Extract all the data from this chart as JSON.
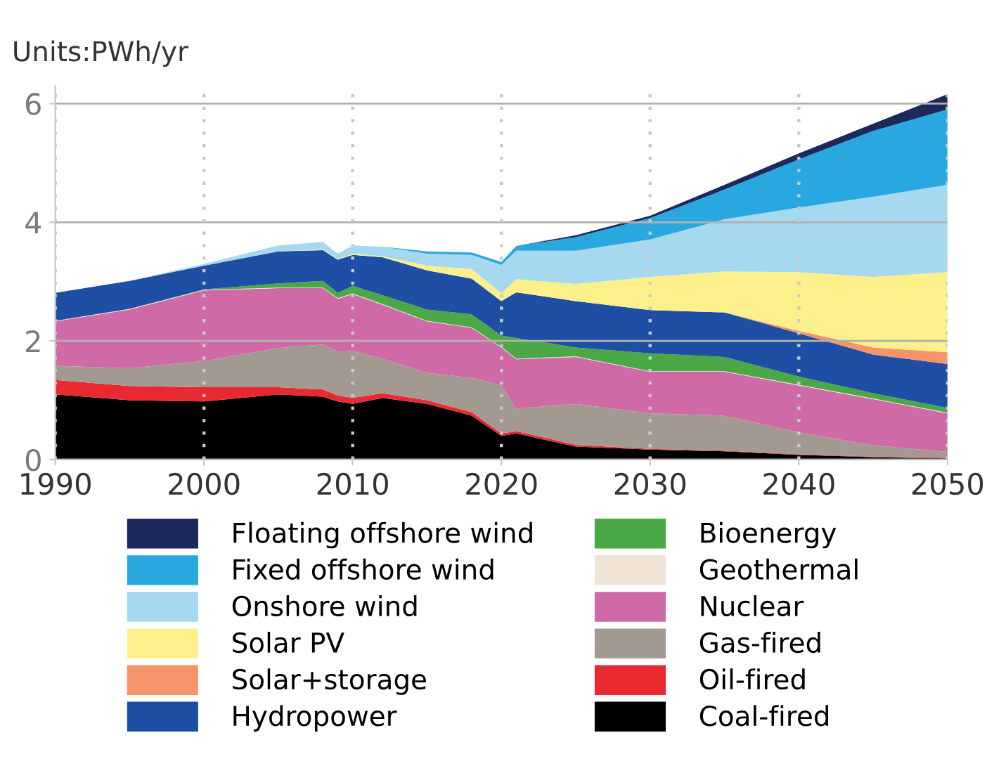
{
  "chart_data": {
    "type": "area",
    "stacked": true,
    "title": "Units:PWh/yr",
    "x": [
      1990,
      1995,
      2000,
      2005,
      2008,
      2009,
      2010,
      2012,
      2015,
      2018,
      2020,
      2021,
      2025,
      2030,
      2035,
      2040,
      2045,
      2050
    ],
    "series": [
      {
        "name": "Coal-fired",
        "color": "#000000",
        "values": [
          1.1,
          1.0,
          0.98,
          1.1,
          1.06,
          0.98,
          0.94,
          1.04,
          0.94,
          0.74,
          0.4,
          0.44,
          0.22,
          0.17,
          0.14,
          0.08,
          0.04,
          0.02
        ]
      },
      {
        "name": "Oil-fired",
        "color": "#e8292f",
        "values": [
          0.24,
          0.24,
          0.24,
          0.12,
          0.12,
          0.1,
          0.1,
          0.08,
          0.06,
          0.06,
          0.04,
          0.04,
          0.03,
          0.01,
          0.01,
          0.01,
          0.01,
          0.01
        ]
      },
      {
        "name": "Gas-fired",
        "color": "#a29a90",
        "values": [
          0.24,
          0.3,
          0.44,
          0.66,
          0.76,
          0.74,
          0.79,
          0.58,
          0.46,
          0.58,
          0.81,
          0.38,
          0.69,
          0.6,
          0.59,
          0.37,
          0.19,
          0.1
        ]
      },
      {
        "name": "Nuclear",
        "color": "#d06aa6",
        "values": [
          0.75,
          0.99,
          1.19,
          1.01,
          0.95,
          0.89,
          0.96,
          0.91,
          0.87,
          0.84,
          0.64,
          0.83,
          0.79,
          0.7,
          0.74,
          0.79,
          0.78,
          0.65
        ]
      },
      {
        "name": "Geothermal",
        "color": "#f0e4d6",
        "values": [
          0.01,
          0.01,
          0.01,
          0.01,
          0.01,
          0.01,
          0.01,
          0.01,
          0.01,
          0.01,
          0.01,
          0.01,
          0.01,
          0.01,
          0.01,
          0.01,
          0.01,
          0.01
        ]
      },
      {
        "name": "Bioenergy",
        "color": "#4aa847",
        "values": [
          0.0,
          0.0,
          0.01,
          0.07,
          0.11,
          0.09,
          0.13,
          0.15,
          0.19,
          0.22,
          0.19,
          0.35,
          0.15,
          0.3,
          0.24,
          0.14,
          0.09,
          0.08
        ]
      },
      {
        "name": "Hydropower",
        "color": "#1f4fa5",
        "values": [
          0.47,
          0.47,
          0.4,
          0.54,
          0.52,
          0.56,
          0.52,
          0.64,
          0.66,
          0.6,
          0.58,
          0.77,
          0.78,
          0.73,
          0.75,
          0.73,
          0.65,
          0.74
        ]
      },
      {
        "name": "Solar+storage",
        "color": "#f7936a",
        "values": [
          0,
          0,
          0,
          0,
          0,
          0,
          0,
          0,
          0,
          0,
          0,
          0,
          0,
          0,
          0,
          0.04,
          0.12,
          0.2
        ]
      },
      {
        "name": "Solar PV",
        "color": "#fbf08a",
        "values": [
          0,
          0,
          0,
          0,
          0.01,
          0.01,
          0.02,
          0.02,
          0.08,
          0.16,
          0.13,
          0.22,
          0.29,
          0.56,
          0.69,
          0.99,
          1.19,
          1.35
        ]
      },
      {
        "name": "Onshore wind",
        "color": "#a6d8f0",
        "values": [
          0,
          0,
          0.03,
          0.1,
          0.13,
          0.09,
          0.14,
          0.16,
          0.2,
          0.24,
          0.48,
          0.48,
          0.56,
          0.63,
          0.88,
          1.09,
          1.35,
          1.47
        ]
      },
      {
        "name": "Fixed offshore wind",
        "color": "#29a8e0",
        "values": [
          0,
          0,
          0,
          0,
          0,
          0,
          0,
          0,
          0.04,
          0.04,
          0.05,
          0.08,
          0.23,
          0.36,
          0.5,
          0.81,
          1.11,
          1.27
        ]
      },
      {
        "name": "Floating offshore wind",
        "color": "#1b2a5a",
        "values": [
          0,
          0,
          0,
          0,
          0,
          0,
          0,
          0,
          0,
          0,
          0,
          0,
          0.03,
          0.04,
          0.08,
          0.1,
          0.12,
          0.26
        ]
      }
    ],
    "xlim": [
      1990,
      2050
    ],
    "xticks": [
      1990,
      2000,
      2010,
      2020,
      2030,
      2040,
      2050
    ],
    "ylim": [
      0,
      6.3
    ],
    "yticks": [
      0,
      2,
      4,
      6
    ],
    "grid": true,
    "legend": "bottom"
  }
}
